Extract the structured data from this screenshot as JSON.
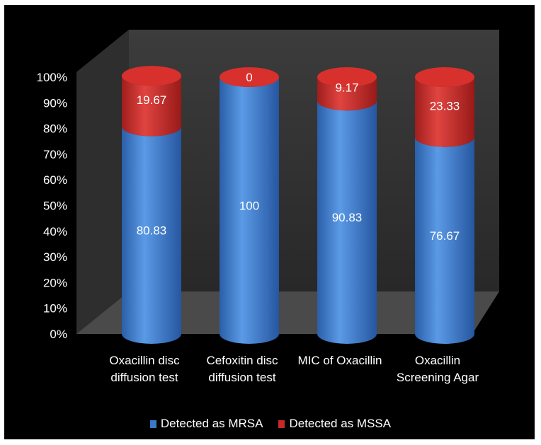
{
  "chart_data": {
    "type": "bar",
    "stacked": true,
    "style": "3d-cylinder",
    "categories": [
      "Oxacillin disc\ndiffusion test",
      "Cefoxitin disc\ndiffusion test",
      "MIC of Oxacillin",
      "Oxacillin\nScreening  Agar"
    ],
    "series": [
      {
        "name": "Detected as MRSA",
        "values": [
          80.83,
          100,
          90.83,
          76.67
        ],
        "labels": [
          "80.83",
          "100",
          "90.83",
          "76.67"
        ],
        "color": "#3a78c8"
      },
      {
        "name": "Detected as MSSA",
        "values": [
          19.67,
          0,
          9.17,
          23.33
        ],
        "labels": [
          "19.67",
          "0",
          "9.17",
          "23.33"
        ],
        "color": "#c42a26"
      }
    ],
    "yticks": [
      "0%",
      "10%",
      "20%",
      "30%",
      "40%",
      "50%",
      "60%",
      "70%",
      "80%",
      "90%",
      "100%"
    ],
    "ylim": [
      0,
      100
    ],
    "legend_position": "bottom",
    "background": "#000000",
    "grid": false
  }
}
